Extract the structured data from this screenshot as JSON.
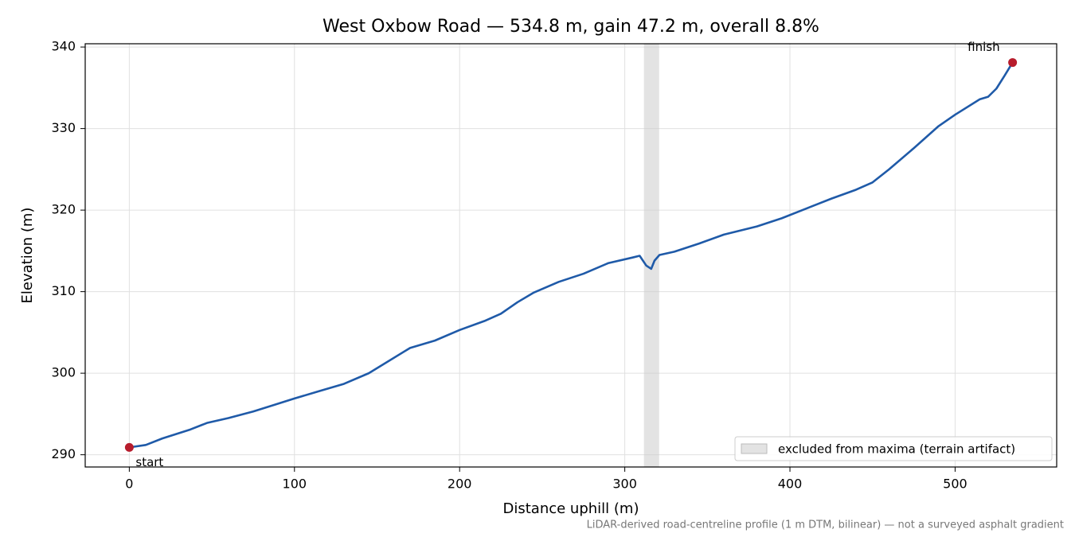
{
  "chart_data": {
    "type": "line",
    "title": "West Oxbow Road — 534.8 m, gain 47.2 m, overall 8.8%",
    "x_label": "Distance uphill (m)",
    "y_label": "Elevation (m)",
    "note": "LiDAR-derived road-centreline profile (1 m DTM, bilinear) — not a surveyed asphalt gradient",
    "x": [
      0,
      10,
      20,
      37,
      47,
      60,
      75,
      100,
      115,
      130,
      145,
      170,
      185,
      200,
      215,
      225,
      235,
      245,
      260,
      275,
      290,
      305,
      309,
      313,
      316,
      318,
      321,
      330,
      345,
      360,
      380,
      395,
      410,
      425,
      440,
      450,
      460,
      475,
      490,
      500,
      515,
      520,
      525,
      530,
      534.8
    ],
    "series": [
      {
        "name": "elevation",
        "color": "#1f5aa8",
        "values": [
          290.9,
          291.2,
          292,
          293.1,
          293.9,
          294.5,
          295.3,
          296.9,
          297.8,
          298.7,
          300.0,
          303.1,
          304.0,
          305.3,
          306.4,
          307.3,
          308.7,
          309.9,
          311.2,
          312.2,
          313.5,
          314.2,
          314.4,
          313.2,
          312.8,
          313.8,
          314.5,
          314.9,
          315.9,
          317.0,
          318.0,
          319.0,
          320.2,
          321.4,
          322.5,
          323.4,
          325.0,
          327.6,
          330.3,
          331.7,
          333.6,
          333.9,
          334.9,
          336.5,
          338.1
        ]
      }
    ],
    "endpoints": {
      "color": "#b71c2c",
      "labels": [
        "start",
        "finish"
      ]
    },
    "excluded_band": {
      "x": [
        311.6,
        320.8
      ],
      "color": "#cccccc",
      "label": "excluded from maxima (terrain artifact)"
    },
    "xlim": [
      -26.7,
      561.5
    ],
    "ylim": [
      288.5,
      340.4
    ],
    "xticks": [
      0,
      100,
      200,
      300,
      400,
      500
    ],
    "yticks": [
      290,
      300,
      310,
      320,
      330,
      340
    ],
    "grid": true,
    "legend": "lower right"
  }
}
